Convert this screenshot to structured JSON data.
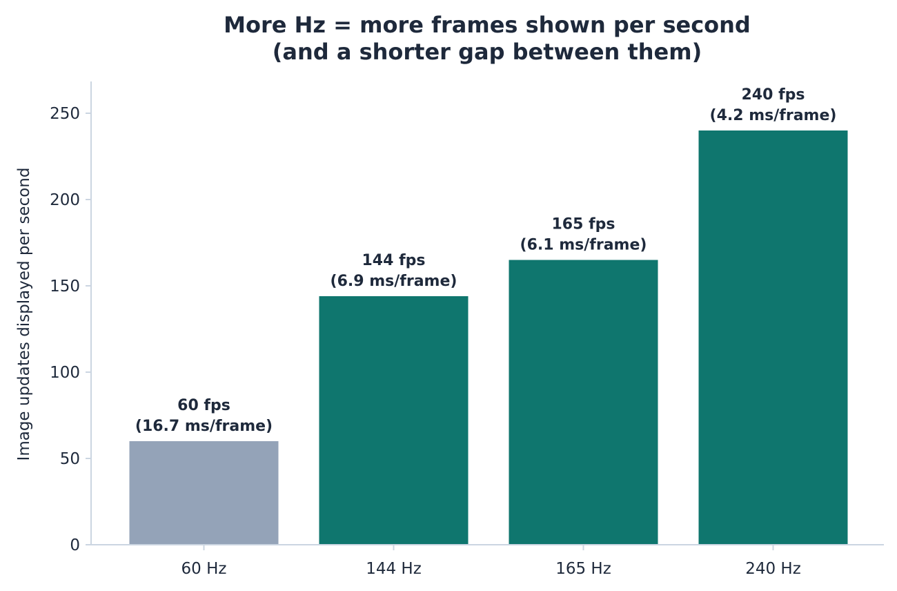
{
  "chart_data": {
    "type": "bar",
    "title_lines": [
      "More Hz = more frames shown per second",
      "(and a shorter gap between them)"
    ],
    "xlabel": "",
    "ylabel": "Image updates displayed per second",
    "categories": [
      "60 Hz",
      "144 Hz",
      "165 Hz",
      "240 Hz"
    ],
    "values": [
      60,
      144,
      165,
      240
    ],
    "value_labels": [
      [
        "60 fps",
        "(16.7 ms/frame)"
      ],
      [
        "144 fps",
        "(6.9 ms/frame)"
      ],
      [
        "165 fps",
        "(6.1 ms/frame)"
      ],
      [
        "240 fps",
        "(4.2 ms/frame)"
      ]
    ],
    "bar_colors": [
      "#94a3b8",
      "#0f766e",
      "#0f766e",
      "#0f766e"
    ],
    "ylim": [
      0,
      268
    ],
    "yticks": [
      0,
      50,
      100,
      150,
      200,
      250
    ],
    "grid": false,
    "legend": "none",
    "axis_color": "#cbd5e1",
    "text_color": "#1e293b"
  }
}
